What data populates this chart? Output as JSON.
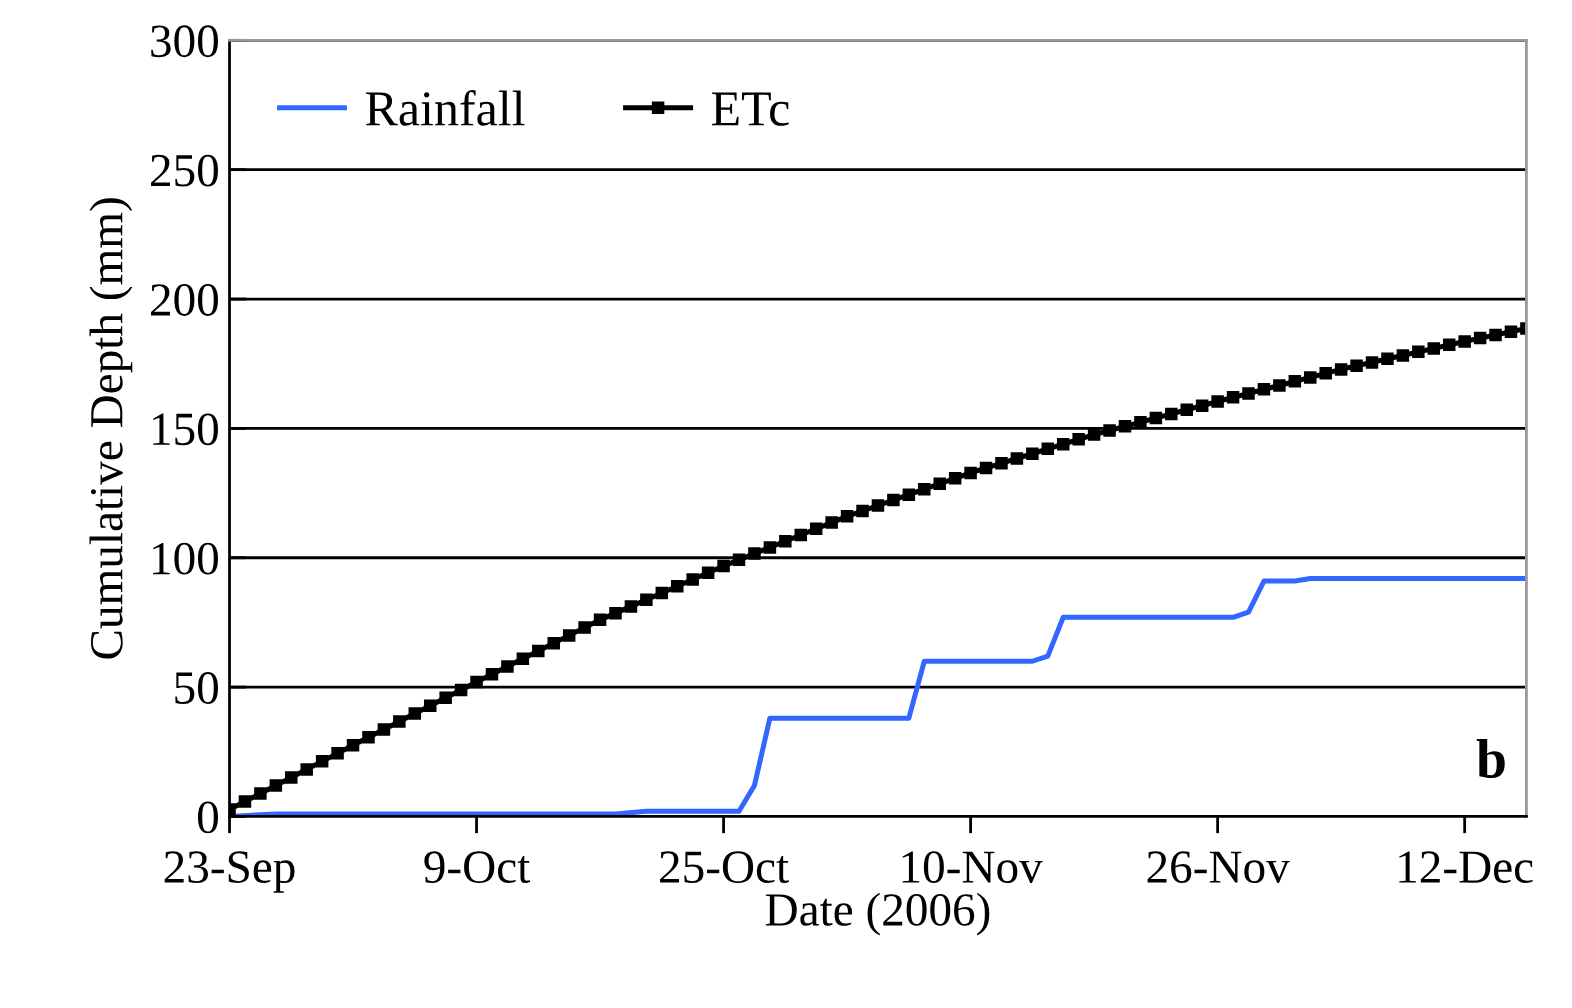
{
  "chart_data": {
    "type": "line",
    "xlabel": "Date (2006)",
    "ylabel": "Cumulative Depth (mm)",
    "xlim": [
      "2006-09-23",
      "2006-12-16"
    ],
    "xticks": [
      {
        "value": "2006-09-23",
        "label": "23-Sep"
      },
      {
        "value": "2006-10-09",
        "label": "9-Oct"
      },
      {
        "value": "2006-10-25",
        "label": "25-Oct"
      },
      {
        "value": "2006-11-10",
        "label": "10-Nov"
      },
      {
        "value": "2006-11-26",
        "label": "26-Nov"
      },
      {
        "value": "2006-12-12",
        "label": "12-Dec"
      }
    ],
    "ylim": [
      0,
      300
    ],
    "yticks": [
      0,
      50,
      100,
      150,
      200,
      250,
      300
    ],
    "grid": "y",
    "legend": "top left",
    "annotations": [
      "b"
    ],
    "series": [
      {
        "name": "Rainfall",
        "color": "#3366ff",
        "marker": "none",
        "x": [
          "2006-09-23",
          "2006-09-26",
          "2006-10-18",
          "2006-10-20",
          "2006-10-26",
          "2006-10-27",
          "2006-10-28",
          "2006-11-06",
          "2006-11-07",
          "2006-11-14",
          "2006-11-15",
          "2006-11-16",
          "2006-11-27",
          "2006-11-28",
          "2006-11-29",
          "2006-12-01",
          "2006-12-02",
          "2006-12-16"
        ],
        "values": [
          0,
          1,
          1,
          2,
          2,
          12,
          38,
          38,
          60,
          60,
          62,
          77,
          77,
          79,
          91,
          91,
          92,
          92
        ]
      },
      {
        "name": "ETc",
        "color": "#000000",
        "marker": "square",
        "x": [
          "2006-09-23",
          "2006-09-24",
          "2006-09-25",
          "2006-09-26",
          "2006-09-27",
          "2006-09-28",
          "2006-09-29",
          "2006-09-30",
          "2006-10-01",
          "2006-10-02",
          "2006-10-03",
          "2006-10-04",
          "2006-10-05",
          "2006-10-06",
          "2006-10-07",
          "2006-10-08",
          "2006-10-09",
          "2006-10-10",
          "2006-10-11",
          "2006-10-12",
          "2006-10-13",
          "2006-10-14",
          "2006-10-15",
          "2006-10-16",
          "2006-10-17",
          "2006-10-18",
          "2006-10-19",
          "2006-10-20",
          "2006-10-21",
          "2006-10-22",
          "2006-10-23",
          "2006-10-24",
          "2006-10-25",
          "2006-10-26",
          "2006-10-27",
          "2006-10-28",
          "2006-10-29",
          "2006-10-30",
          "2006-10-31",
          "2006-11-01",
          "2006-11-02",
          "2006-11-03",
          "2006-11-04",
          "2006-11-05",
          "2006-11-06",
          "2006-11-07",
          "2006-11-08",
          "2006-11-09",
          "2006-11-10",
          "2006-11-11",
          "2006-11-12",
          "2006-11-13",
          "2006-11-14",
          "2006-11-15",
          "2006-11-16",
          "2006-11-17",
          "2006-11-18",
          "2006-11-19",
          "2006-11-20",
          "2006-11-21",
          "2006-11-22",
          "2006-11-23",
          "2006-11-24",
          "2006-11-25",
          "2006-11-26",
          "2006-11-27",
          "2006-11-28",
          "2006-11-29",
          "2006-11-30",
          "2006-12-01",
          "2006-12-02",
          "2006-12-03",
          "2006-12-04",
          "2006-12-05",
          "2006-12-06",
          "2006-12-07",
          "2006-12-08",
          "2006-12-09",
          "2006-12-10",
          "2006-12-11",
          "2006-12-12",
          "2006-12-13",
          "2006-12-14",
          "2006-12-15",
          "2006-12-16"
        ],
        "values": [
          2.7,
          5.8,
          8.9,
          12.0,
          15.1,
          18.2,
          21.3,
          24.4,
          27.5,
          30.6,
          33.6,
          36.7,
          39.8,
          42.8,
          45.9,
          48.9,
          52.0,
          55.0,
          58.0,
          61.0,
          64.0,
          67.0,
          70.0,
          73.0,
          76.0,
          78.6,
          81.2,
          83.8,
          86.4,
          89.0,
          91.6,
          94.2,
          96.8,
          99.2,
          101.6,
          104.0,
          106.4,
          108.8,
          111.2,
          113.6,
          116.0,
          118.1,
          120.2,
          122.3,
          124.4,
          126.5,
          128.6,
          130.7,
          132.8,
          134.7,
          136.5,
          138.4,
          140.2,
          142.1,
          143.9,
          145.8,
          147.6,
          149.2,
          150.8,
          152.4,
          154.0,
          155.6,
          157.2,
          158.8,
          160.4,
          162.0,
          163.5,
          165.1,
          166.6,
          168.2,
          169.7,
          171.3,
          172.8,
          174.2,
          175.5,
          176.9,
          178.2,
          179.6,
          180.9,
          182.3,
          183.6,
          184.9,
          186.1,
          187.4,
          188.6
        ]
      }
    ]
  }
}
